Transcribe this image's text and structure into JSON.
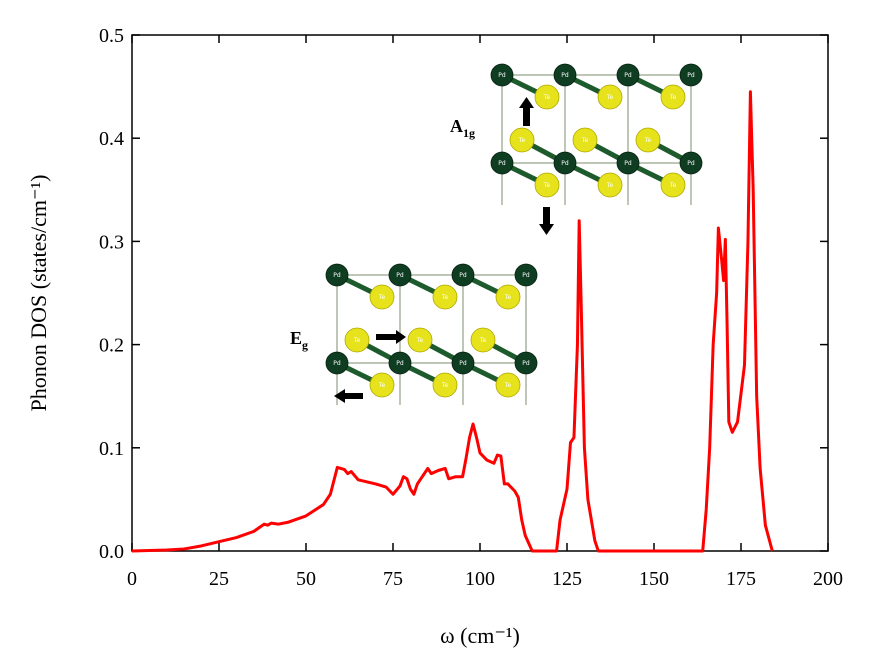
{
  "chart_data": {
    "type": "line",
    "xlabel": "ω (cm⁻¹)",
    "ylabel": "Phonon DOS (states/cm⁻¹)",
    "xlim": [
      0,
      200
    ],
    "xticks": [
      0,
      25,
      50,
      75,
      100,
      125,
      150,
      175,
      200
    ],
    "ylim": [
      0,
      0.5
    ],
    "yticks": [
      {
        "value": 0,
        "label": "0.0"
      },
      0.1,
      0.2,
      0.3,
      0.4,
      0.5
    ],
    "grid": false,
    "series": [
      {
        "color": "#ff0000",
        "x": [
          0,
          5,
          10,
          15,
          20,
          25,
          30,
          35,
          38,
          39,
          40,
          42,
          45,
          50,
          55,
          57,
          59,
          61,
          62,
          63,
          65,
          70,
          73,
          75,
          77,
          78,
          79,
          80,
          81,
          82,
          84,
          85,
          86,
          88,
          90,
          91,
          93,
          95,
          96,
          97,
          98,
          99,
          100,
          102,
          104,
          105,
          106,
          107,
          108,
          110,
          111,
          112,
          113,
          115,
          122,
          123,
          125,
          126,
          127,
          128,
          128.5,
          129,
          130,
          131,
          133,
          134,
          164,
          165,
          166,
          167,
          168,
          168.5,
          169.5,
          170,
          170.5,
          171,
          171.5,
          172.5,
          174,
          176,
          177,
          177.7,
          178.5,
          179.5,
          180.5,
          182,
          184
        ],
        "values": [
          0,
          0.0005,
          0.001,
          0.002,
          0.005,
          0.009,
          0.013,
          0.019,
          0.026,
          0.025,
          0.027,
          0.026,
          0.028,
          0.034,
          0.045,
          0.055,
          0.081,
          0.079,
          0.075,
          0.077,
          0.069,
          0.065,
          0.062,
          0.055,
          0.063,
          0.072,
          0.07,
          0.06,
          0.055,
          0.065,
          0.075,
          0.08,
          0.075,
          0.078,
          0.08,
          0.07,
          0.072,
          0.072,
          0.09,
          0.11,
          0.123,
          0.11,
          0.095,
          0.088,
          0.085,
          0.093,
          0.092,
          0.065,
          0.065,
          0.058,
          0.052,
          0.03,
          0.015,
          0,
          0,
          0.03,
          0.06,
          0.105,
          0.11,
          0.2,
          0.32,
          0.25,
          0.1,
          0.05,
          0.01,
          0,
          0,
          0.04,
          0.1,
          0.2,
          0.25,
          0.313,
          0.28,
          0.262,
          0.302,
          0.22,
          0.125,
          0.115,
          0.125,
          0.18,
          0.3,
          0.445,
          0.35,
          0.15,
          0.08,
          0.025,
          0
        ]
      }
    ],
    "annotations": [
      {
        "text": "A",
        "sub": "1g"
      },
      {
        "text": "E",
        "sub": "g"
      }
    ],
    "atom_labels": [
      "Pd",
      "Te"
    ]
  }
}
